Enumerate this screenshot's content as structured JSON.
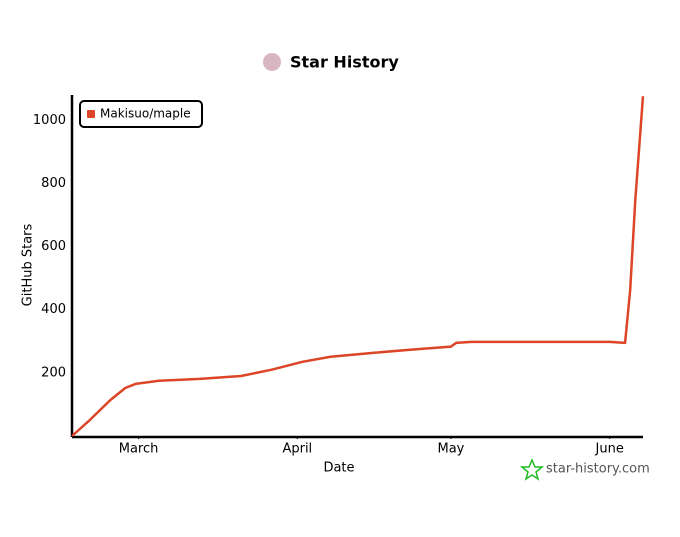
{
  "chart_data": {
    "type": "line",
    "title": "Star History",
    "x_label": "Date",
    "y_label": "GitHub Stars",
    "x": [
      47,
      50.5,
      54.5,
      57.4,
      59.4,
      64,
      72,
      80,
      86,
      92,
      97.5,
      105.5,
      113,
      121,
      122,
      125,
      135,
      143,
      152,
      155,
      156,
      157,
      158.5
    ],
    "series": [
      {
        "name": "Makisuo/maple",
        "color": "#dd4528",
        "values": [
          0,
          51,
          114,
          152,
          165,
          175,
          181,
          190,
          210,
          235,
          251,
          263,
          273,
          283,
          295,
          298,
          298,
          298,
          298,
          295,
          463,
          749,
          1076
        ]
      }
    ],
    "xlim": [
      47,
      158.5
    ],
    "xticks": [
      {
        "value": 60,
        "label": "March"
      },
      {
        "value": 91,
        "label": "April"
      },
      {
        "value": 121,
        "label": "May"
      },
      {
        "value": 152,
        "label": "June"
      }
    ],
    "ylim": [
      0,
      1080
    ],
    "yticks": [
      200,
      400,
      600,
      800,
      1000
    ],
    "grid": false,
    "legend": "top-left",
    "watermark": "star-history.com"
  }
}
